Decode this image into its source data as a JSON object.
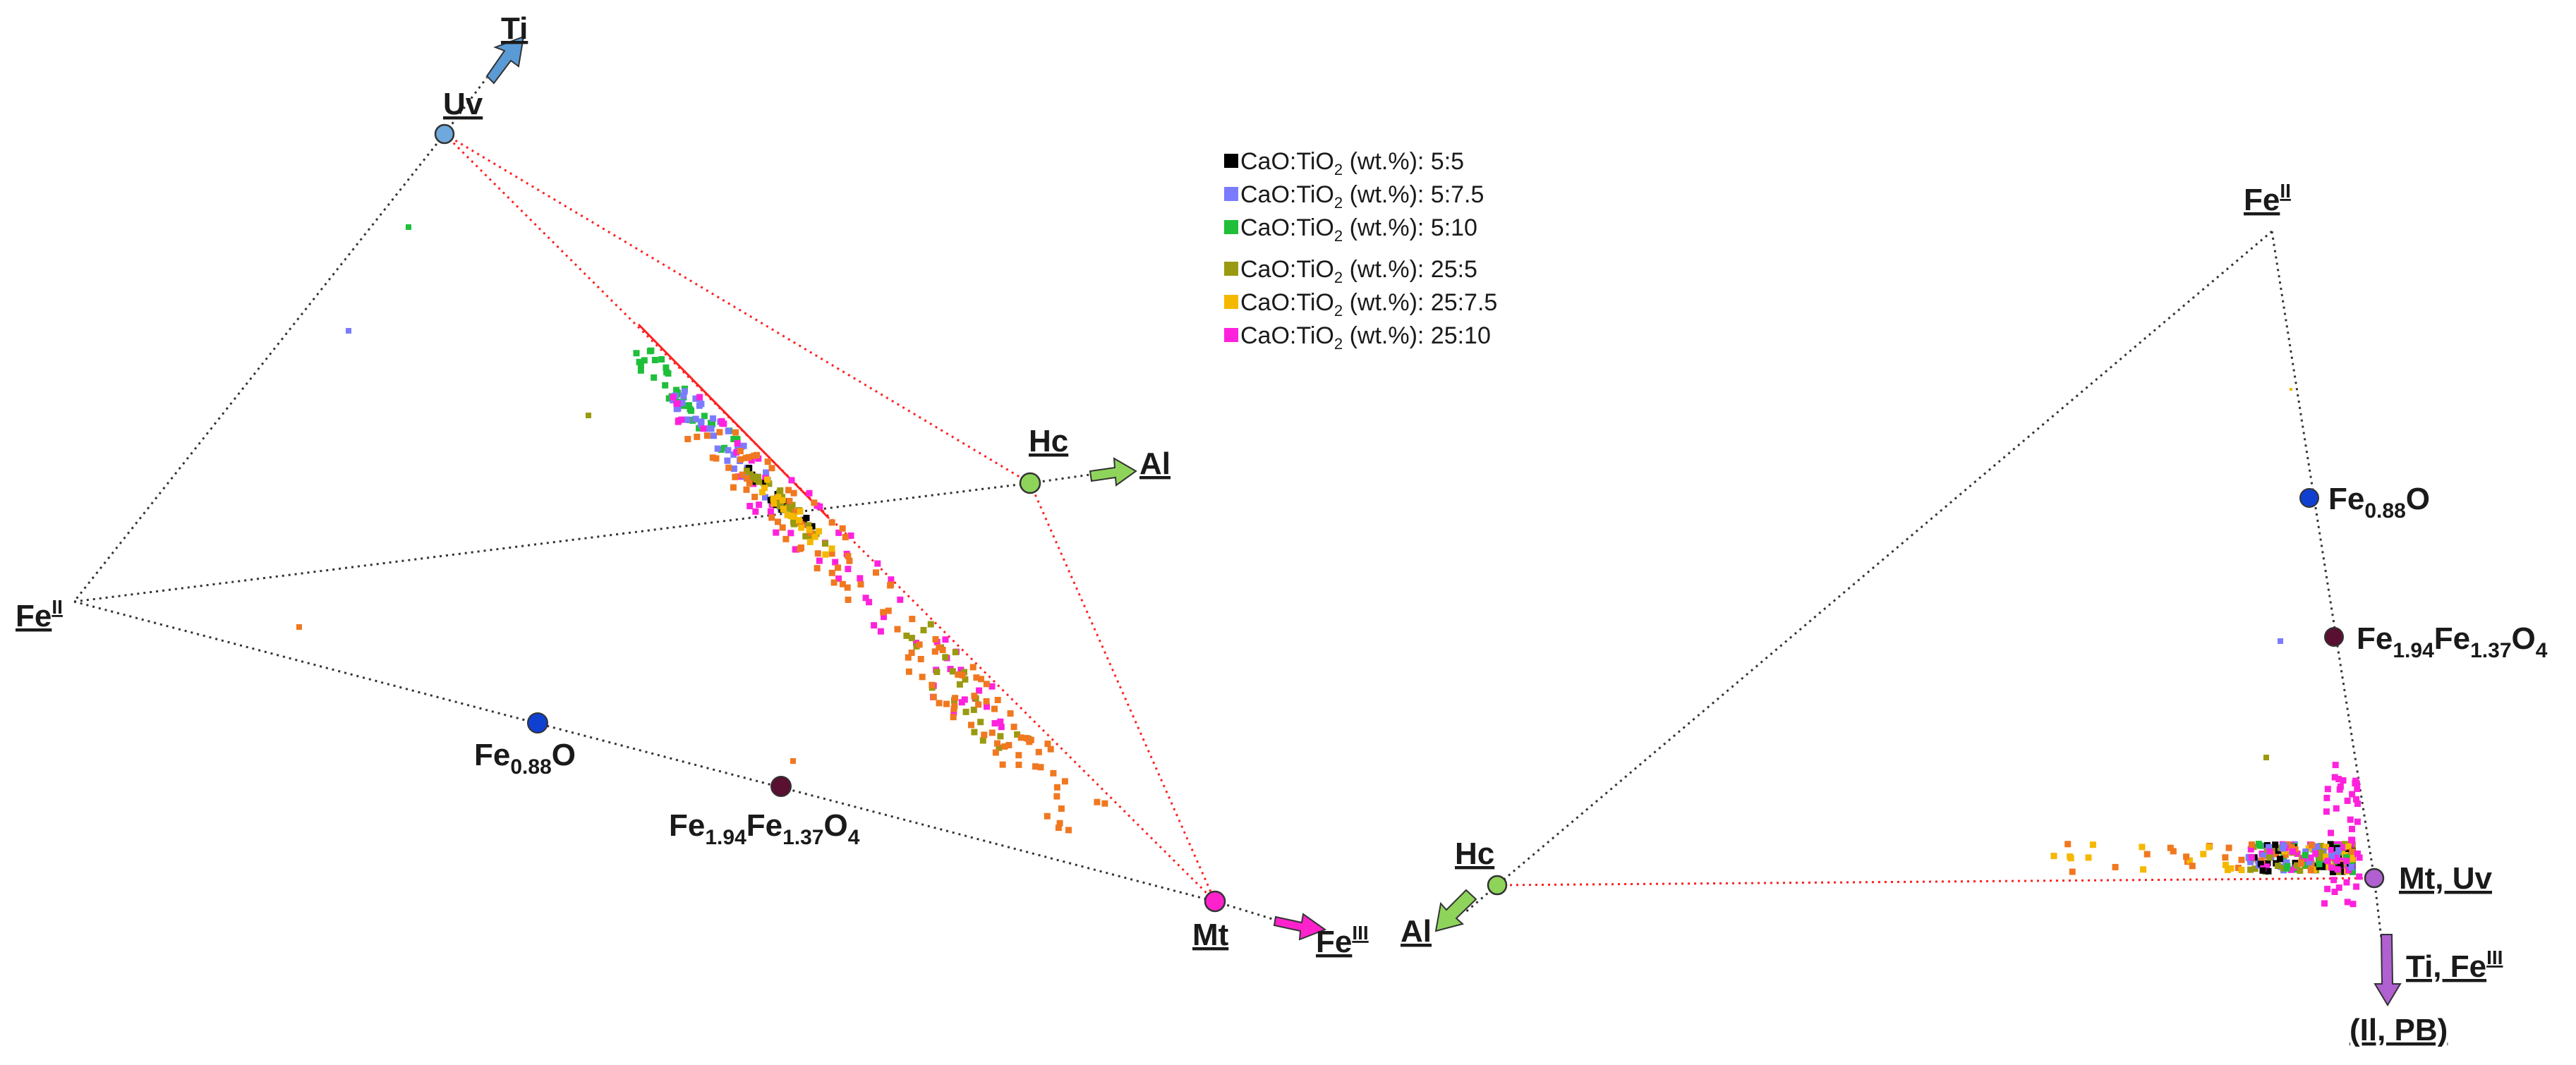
{
  "legend": {
    "prefix": "CaO:TiO",
    "subscript": "2",
    "suffix": " (wt.%): ",
    "entries": [
      {
        "ratio": "5:5",
        "color": "#000000"
      },
      {
        "ratio": "5:7.5",
        "color": "#7b7bff"
      },
      {
        "ratio": "5:10",
        "color": "#1fbf3a"
      },
      {
        "ratio": "25:5",
        "color": "#9a9a10"
      },
      {
        "ratio": "25:7.5",
        "color": "#f5b800"
      },
      {
        "ratio": "25:10",
        "color": "#ff22dd"
      }
    ],
    "extra_point_color": "#f07820"
  },
  "left_diagram": {
    "labels": {
      "ti": "Ti",
      "uv": "Uv",
      "hc": "Hc",
      "al": "Al",
      "fe_base": "Fe",
      "fe_ii_sup": "II",
      "mt": "Mt",
      "fe_iii_sup": "III",
      "fe088_base": "Fe",
      "fe088_sub": "0.88",
      "fe088_tail": "O",
      "fe194_a": "Fe",
      "fe194_sub1": "1.94",
      "fe194_b": "Fe",
      "fe194_sub2": "1.37",
      "fe194_c": "O",
      "fe194_sub3": "4"
    },
    "marker_colors": {
      "uv": "#6fa8dc",
      "hc": "#8fd45a",
      "mt": "#ff22cc",
      "fe088": "#1040d0",
      "fe194": "#5a1030"
    }
  },
  "right_diagram": {
    "labels": {
      "fe_base": "Fe",
      "fe_ii_sup": "II",
      "fe088_base": "Fe",
      "fe088_sub": "0.88",
      "fe088_tail": "O",
      "fe194_a": "Fe",
      "fe194_sub1": "1.94",
      "fe194_b": "Fe",
      "fe194_sub2": "1.37",
      "fe194_c": "O",
      "fe194_sub3": "4",
      "hc": "Hc",
      "al": "Al",
      "mtuv": "Mt, Uv",
      "tife_prefix": "Ti, Fe",
      "tife_sup": "III",
      "ilpb": "(Il, PB)"
    },
    "marker_colors": {
      "hc": "#8fd45a",
      "mtuv": "#b060d0",
      "fe088": "#1040d0",
      "fe194": "#5a1030"
    }
  },
  "arrow_colors": {
    "ti": "#5b9bd5",
    "al": "#8fd45a",
    "fe_iii": "#ff22cc",
    "ti_fe_iii": "#b060d0"
  }
}
